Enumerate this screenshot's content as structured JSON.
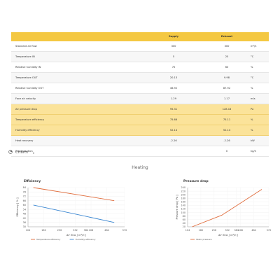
{
  "table": {
    "headers": [
      "",
      "Supply",
      "Exhaust",
      ""
    ],
    "rows": [
      {
        "label": "Standard air flow",
        "supply": "300",
        "exhaust": "300",
        "unit": "m³/h",
        "style": "plain"
      },
      {
        "label": "Temperature IN",
        "supply": "5",
        "exhaust": "25",
        "unit": "°C",
        "style": "alt"
      },
      {
        "label": "Relative humidity IN",
        "supply": "70",
        "exhaust": "60",
        "unit": "%",
        "style": "plain"
      },
      {
        "label": "Temperature OUT",
        "supply": "20.13",
        "exhaust": "9.98",
        "unit": "°C",
        "style": "alt"
      },
      {
        "label": "Relative humidity OUT",
        "supply": "46.92",
        "exhaust": "87.92",
        "unit": "%",
        "style": "plain"
      },
      {
        "label": "Face air velocity",
        "supply": "1.29",
        "exhaust": "1.17",
        "unit": "m/s",
        "style": "alt"
      },
      {
        "label": "Air pressure drop",
        "supply": "95.31",
        "exhaust": "128.18",
        "unit": "Pa",
        "style": "hl"
      },
      {
        "label": "Temperature efficiency",
        "supply": "75.66",
        "exhaust": "75.11",
        "unit": "%",
        "style": "hl"
      },
      {
        "label": "Humidity efficiency",
        "supply": "52.14",
        "exhaust": "52.14",
        "unit": "%",
        "style": "hl"
      },
      {
        "label": "Heat recovery",
        "supply": "-2.26",
        "exhaust": "-2.26",
        "unit": "kW",
        "style": "alt"
      },
      {
        "label": "Condensation",
        "supply": "",
        "exhaust": "0",
        "unit": "kg/h",
        "style": "plain"
      }
    ]
  },
  "charts_toggle": {
    "label": "Charts",
    "icon": "chart-icon",
    "caret": "chevron-down-icon"
  },
  "section_title": "Heating",
  "colors": {
    "header": "#f4c842",
    "highlight": "#fbe39a",
    "temperature": "#e06c3c",
    "humidity": "#3a86d1",
    "pressure": "#e06c3c"
  },
  "chart_data": [
    {
      "type": "line",
      "title": "Efficiency",
      "xlabel": "Air flow [ m³/h ]",
      "ylabel": "Efficiency [ % ]",
      "x_ticks": [
        104,
        180,
        256,
        332,
        384,
        408,
        484,
        570
      ],
      "y_ticks": [
        30,
        36,
        42,
        48,
        54,
        60,
        66,
        72,
        78,
        84
      ],
      "xlim": [
        104,
        570
      ],
      "ylim": [
        30,
        84
      ],
      "series": [
        {
          "name": "Temperature efficiency",
          "color": "#e06c3c",
          "x": [
            130,
            520
          ],
          "y": [
            84,
            66
          ]
        },
        {
          "name": "Humidity efficiency",
          "color": "#3a86d1",
          "x": [
            130,
            520
          ],
          "y": [
            60,
            36
          ]
        }
      ],
      "legend": "bottom"
    },
    {
      "type": "line",
      "title": "Pressure drop",
      "xlabel": "Air flow [ m³/h ]",
      "ylabel": "Pressure drop [ Pa ]",
      "x_ticks": [
        104,
        180,
        256,
        332,
        384,
        408,
        484,
        570
      ],
      "y_ticks": [
        20,
        40,
        60,
        80,
        100,
        120,
        140,
        160,
        180,
        200,
        220,
        240
      ],
      "xlim": [
        104,
        570
      ],
      "ylim": [
        20,
        240
      ],
      "series": [
        {
          "name": "Static pressure",
          "color": "#e06c3c",
          "x": [
            130,
            300,
            530
          ],
          "y": [
            20,
            85,
            230
          ]
        }
      ],
      "legend": "bottom"
    }
  ]
}
